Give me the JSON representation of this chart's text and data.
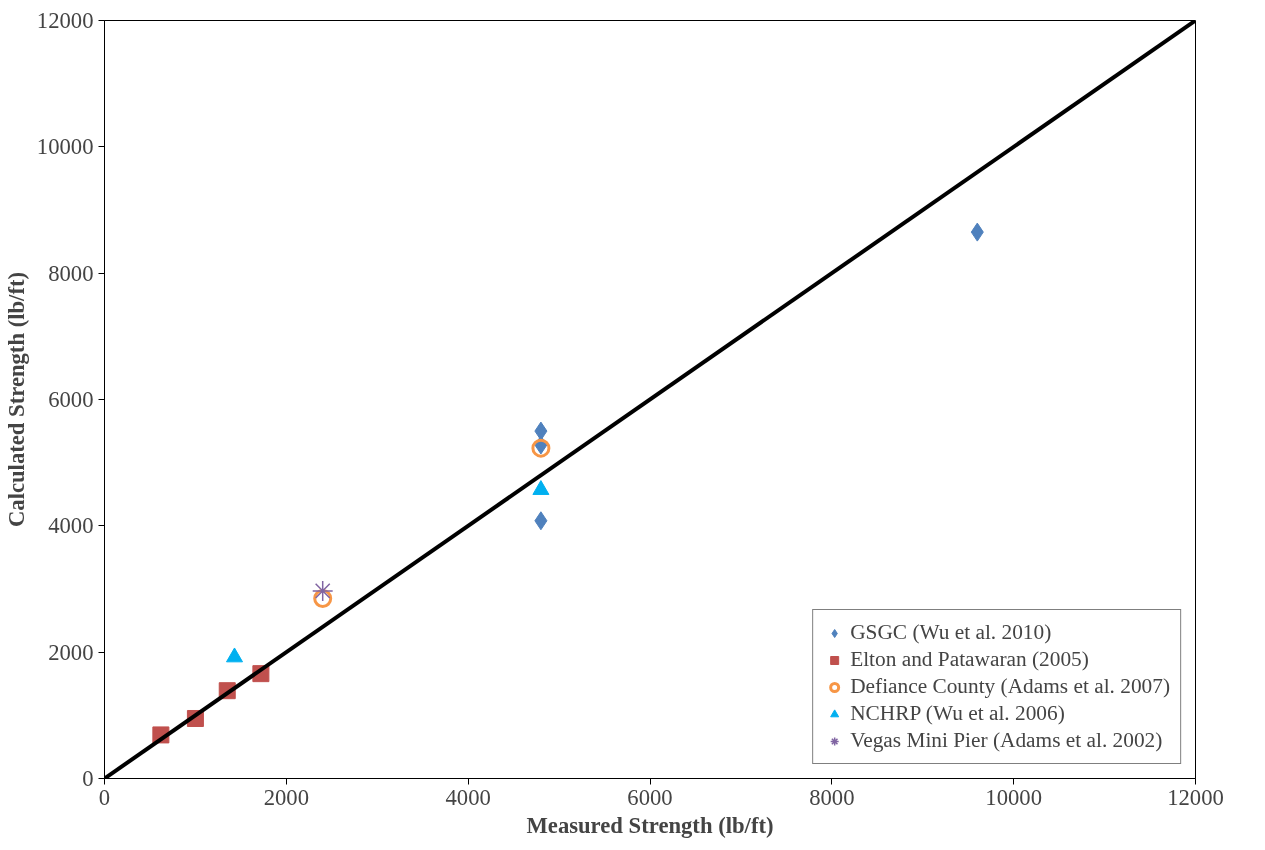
{
  "chart_data": {
    "type": "scatter",
    "xlabel": "Measured Strength (lb/ft)",
    "ylabel": "Calculated Strength (lb/ft)",
    "xlim": [
      0,
      12000
    ],
    "ylim": [
      0,
      12000
    ],
    "xticks": [
      0,
      2000,
      4000,
      6000,
      8000,
      10000,
      12000
    ],
    "yticks": [
      0,
      2000,
      4000,
      6000,
      8000,
      10000,
      12000
    ],
    "grid": false,
    "legend": "bottom right",
    "series": [
      {
        "name": "GSGC (Wu et al. 2010)",
        "color": "#4f81bd",
        "marker": "diamond",
        "x": [
          4800,
          4800,
          4800,
          9600
        ],
        "values": [
          5500,
          5280,
          4080,
          8650
        ]
      },
      {
        "name": "Elton and Patawaran (2005)",
        "color": "#c0504d",
        "marker": "square",
        "x": [
          620,
          1000,
          1350,
          1720
        ],
        "values": [
          690,
          950,
          1390,
          1660
        ]
      },
      {
        "name": "Defiance County (Adams et al. 2007)",
        "color": "#f79646",
        "marker": "circle",
        "x": [
          2400,
          4800
        ],
        "values": [
          2850,
          5230
        ]
      },
      {
        "name": "NCHRP (Wu et al. 2006)",
        "color": "#00b0f0",
        "marker": "triangle",
        "x": [
          1430,
          4800
        ],
        "values": [
          1920,
          4570
        ]
      },
      {
        "name": "Vegas Mini Pier (Adams et al. 2002)",
        "color": "#8064a2",
        "marker": "cross",
        "x": [
          2400
        ],
        "values": [
          2970
        ]
      },
      {
        "type": "line",
        "color": "#000000",
        "x": [
          0,
          12000
        ],
        "values": [
          0,
          12000
        ]
      }
    ]
  }
}
